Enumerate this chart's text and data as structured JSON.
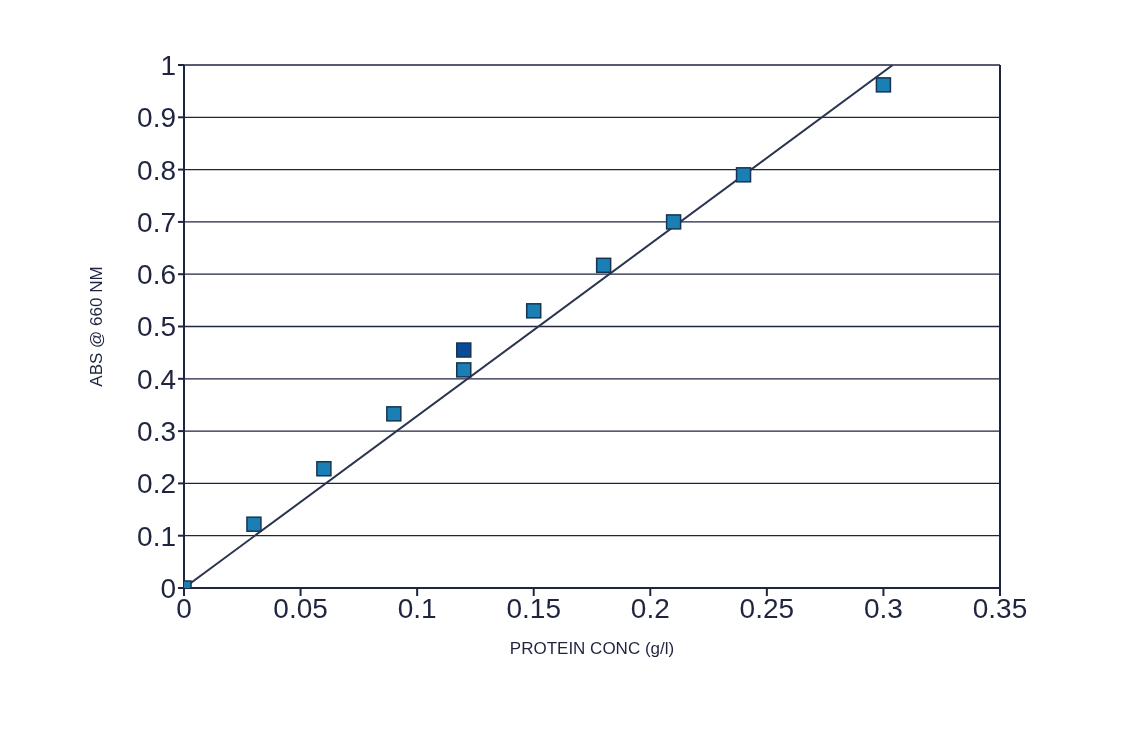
{
  "chart_data": {
    "type": "scatter",
    "xlabel": "PROTEIN CONC (g/l)",
    "ylabel": "ABS @ 660 NM",
    "xlim": [
      0,
      0.35
    ],
    "xticks": [
      0,
      0.05,
      0.1,
      0.15,
      0.2,
      0.25,
      0.3,
      0.35
    ],
    "ylim": [
      0,
      1
    ],
    "yticks": [
      0,
      0.1,
      0.2,
      0.3,
      0.4,
      0.5,
      0.6,
      0.7,
      0.8,
      0.9,
      1
    ],
    "grid": "y",
    "legend": false,
    "marker": "square",
    "series": [
      {
        "color": "#1a7fb5",
        "x": [
          0,
          0.03,
          0.06,
          0.09,
          0.12,
          0.15,
          0.18,
          0.21,
          0.24,
          0.3
        ],
        "values": [
          0,
          0.122,
          0.228,
          0.333,
          0.417,
          0.53,
          0.617,
          0.7,
          0.79,
          0.962
        ]
      },
      {
        "color": "#0a4a9a",
        "x": [
          0.12
        ],
        "values": [
          0.455
        ]
      },
      {
        "type": "line",
        "color": "#2a3350",
        "marker": "none",
        "line_style": "solid",
        "x": [
          0,
          0.304
        ],
        "values": [
          0,
          1
        ]
      }
    ]
  }
}
